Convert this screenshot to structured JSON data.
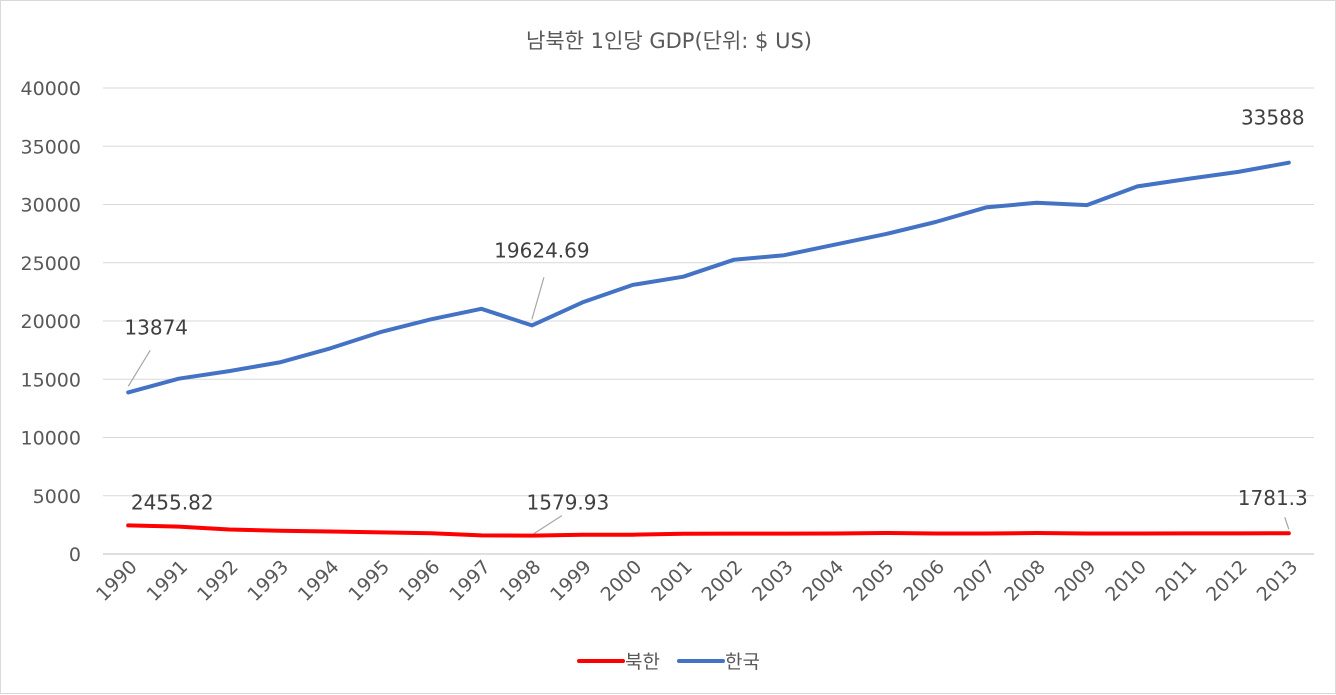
{
  "chart_data": {
    "type": "line",
    "title": "남북한 1인당 GDP(단위: $ US)",
    "xlabel": "",
    "ylabel": "",
    "ylim": [
      0,
      40000
    ],
    "yticks": [
      0,
      5000,
      10000,
      15000,
      20000,
      25000,
      30000,
      35000,
      40000
    ],
    "grid": true,
    "legend_position": "bottom",
    "categories": [
      "1990",
      "1991",
      "1992",
      "1993",
      "1994",
      "1995",
      "1996",
      "1997",
      "1998",
      "1999",
      "2000",
      "2001",
      "2002",
      "2003",
      "2004",
      "2005",
      "2006",
      "2007",
      "2008",
      "2009",
      "2010",
      "2011",
      "2012",
      "2013"
    ],
    "series": [
      {
        "name": "북한",
        "color": "#ff0000",
        "values": [
          2455.82,
          2350,
          2100,
          2000,
          1930,
          1850,
          1780,
          1600,
          1579.93,
          1650,
          1660,
          1730,
          1750,
          1750,
          1760,
          1800,
          1760,
          1760,
          1800,
          1760,
          1760,
          1770,
          1770,
          1781.3
        ]
      },
      {
        "name": "한국",
        "color": "#4472c4",
        "values": [
          13874,
          15050,
          15700,
          16450,
          17650,
          19050,
          20150,
          21050,
          19624.69,
          21600,
          23100,
          23800,
          25250,
          25650,
          26550,
          27450,
          28500,
          29750,
          30150,
          29950,
          31550,
          32200,
          32800,
          33588
        ]
      }
    ],
    "annotations": [
      {
        "series": "한국",
        "category": "1990",
        "label": "13874"
      },
      {
        "series": "한국",
        "category": "1998",
        "label": "19624.69"
      },
      {
        "series": "한국",
        "category": "2013",
        "label": "33588"
      },
      {
        "series": "북한",
        "category": "1990",
        "label": "2455.82"
      },
      {
        "series": "북한",
        "category": "1998",
        "label": "1579.93"
      },
      {
        "series": "북한",
        "category": "2013",
        "label": "1781.3"
      }
    ]
  }
}
